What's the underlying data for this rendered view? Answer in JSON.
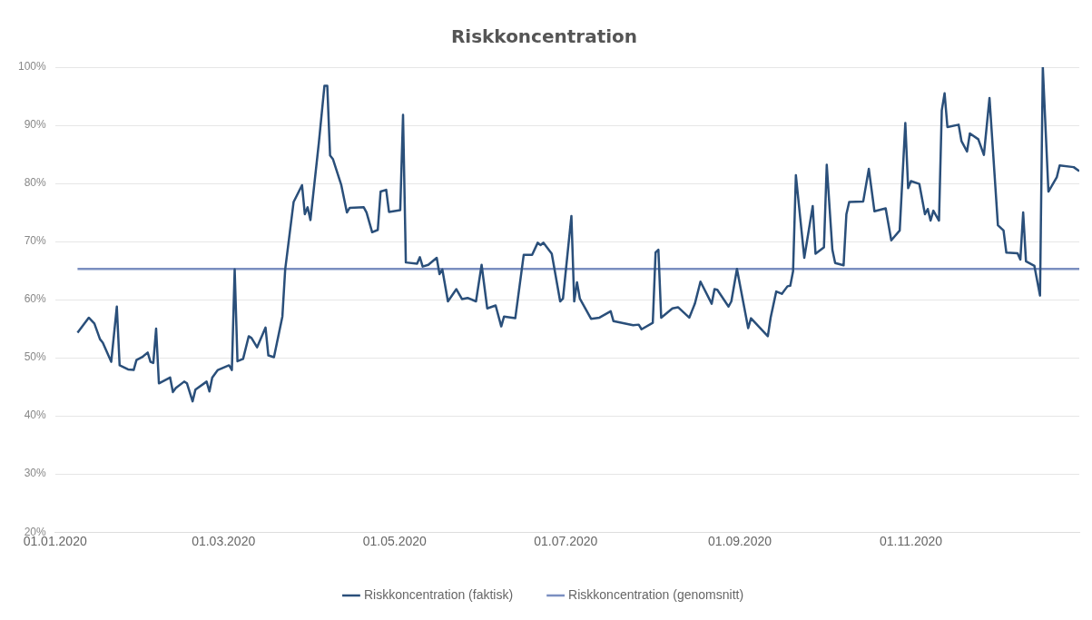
{
  "chart_data": {
    "type": "line",
    "title": "Riskkoncentration",
    "x": [
      "2020-01-09",
      "2020-01-13",
      "2020-01-15",
      "2020-01-17",
      "2020-01-18",
      "2020-01-21",
      "2020-01-23",
      "2020-01-24",
      "2020-01-27",
      "2020-01-29",
      "2020-01-30",
      "2020-02-01",
      "2020-02-03",
      "2020-02-04",
      "2020-02-05",
      "2020-02-06",
      "2020-02-07",
      "2020-02-11",
      "2020-02-12",
      "2020-02-13",
      "2020-02-16",
      "2020-02-17",
      "2020-02-19",
      "2020-02-20",
      "2020-02-24",
      "2020-02-25",
      "2020-02-26",
      "2020-02-28",
      "2020-03-03",
      "2020-03-04",
      "2020-03-05",
      "2020-03-06",
      "2020-03-08",
      "2020-03-10",
      "2020-03-11",
      "2020-03-13",
      "2020-03-16",
      "2020-03-17",
      "2020-03-19",
      "2020-03-22",
      "2020-03-23",
      "2020-03-26",
      "2020-03-29",
      "2020-03-30",
      "2020-03-31",
      "2020-04-01",
      "2020-04-04",
      "2020-04-06",
      "2020-04-07",
      "2020-04-08",
      "2020-04-09",
      "2020-04-12",
      "2020-04-14",
      "2020-04-15",
      "2020-04-20",
      "2020-04-21",
      "2020-04-23",
      "2020-04-25",
      "2020-04-26",
      "2020-04-28",
      "2020-04-29",
      "2020-05-03",
      "2020-05-04",
      "2020-05-05",
      "2020-05-09",
      "2020-05-10",
      "2020-05-11",
      "2020-05-13",
      "2020-05-16",
      "2020-05-17",
      "2020-05-18",
      "2020-05-20",
      "2020-05-23",
      "2020-05-25",
      "2020-05-27",
      "2020-05-30",
      "2020-06-01",
      "2020-06-03",
      "2020-06-06",
      "2020-06-08",
      "2020-06-09",
      "2020-06-13",
      "2020-06-16",
      "2020-06-19",
      "2020-06-21",
      "2020-06-22",
      "2020-06-23",
      "2020-06-26",
      "2020-06-29",
      "2020-06-30",
      "2020-07-03",
      "2020-07-04",
      "2020-07-05",
      "2020-07-06",
      "2020-07-10",
      "2020-07-13",
      "2020-07-17",
      "2020-07-18",
      "2020-07-25",
      "2020-07-27",
      "2020-07-28",
      "2020-08-01",
      "2020-08-02",
      "2020-08-03",
      "2020-08-04",
      "2020-08-08",
      "2020-08-10",
      "2020-08-14",
      "2020-08-16",
      "2020-08-18",
      "2020-08-22",
      "2020-08-23",
      "2020-08-24",
      "2020-08-28",
      "2020-08-29",
      "2020-08-31",
      "2020-09-04",
      "2020-09-05",
      "2020-09-11",
      "2020-09-12",
      "2020-09-14",
      "2020-09-16",
      "2020-09-18",
      "2020-09-19",
      "2020-09-20",
      "2020-09-21",
      "2020-09-24",
      "2020-09-27",
      "2020-09-28",
      "2020-10-01",
      "2020-10-02",
      "2020-10-04",
      "2020-10-05",
      "2020-10-08",
      "2020-10-09",
      "2020-10-10",
      "2020-10-15",
      "2020-10-17",
      "2020-10-19",
      "2020-10-23",
      "2020-10-25",
      "2020-10-28",
      "2020-10-30",
      "2020-10-31",
      "2020-11-01",
      "2020-11-04",
      "2020-11-06",
      "2020-11-07",
      "2020-11-08",
      "2020-11-09",
      "2020-11-11",
      "2020-11-12",
      "2020-11-13",
      "2020-11-14",
      "2020-11-18",
      "2020-11-19",
      "2020-11-21",
      "2020-11-22",
      "2020-11-25",
      "2020-11-27",
      "2020-11-29",
      "2020-12-02",
      "2020-12-04",
      "2020-12-05",
      "2020-12-09",
      "2020-12-10",
      "2020-12-11",
      "2020-12-12",
      "2020-12-15",
      "2020-12-17",
      "2020-12-18",
      "2020-12-20",
      "2020-12-23",
      "2020-12-24",
      "2020-12-29",
      "2020-12-31"
    ],
    "series": [
      {
        "name": "Riskkoncentration (faktisk)",
        "color": "#2a4f7a",
        "values": [
          54.3,
          56.9,
          55.9,
          53.2,
          52.6,
          49.3,
          58.8,
          48.7,
          48.0,
          47.9,
          49.6,
          50.1,
          50.9,
          49.3,
          49.1,
          55.0,
          45.6,
          46.6,
          44.1,
          44.8,
          45.9,
          45.6,
          42.5,
          44.5,
          45.9,
          44.2,
          46.6,
          47.9,
          48.7,
          47.9,
          65.2,
          49.4,
          49.8,
          53.7,
          53.4,
          51.8,
          55.2,
          50.4,
          50.1,
          57.1,
          65.2,
          76.8,
          79.7,
          74.7,
          75.9,
          73.7,
          87.0,
          96.8,
          96.8,
          84.8,
          84.2,
          79.7,
          75.0,
          75.8,
          75.9,
          75.0,
          71.6,
          72.0,
          78.6,
          78.9,
          75.1,
          75.4,
          91.8,
          66.4,
          66.2,
          67.3,
          65.7,
          66.0,
          67.2,
          64.4,
          65.2,
          59.7,
          61.8,
          60.1,
          60.3,
          59.7,
          66.0,
          58.5,
          59.0,
          55.4,
          57.1,
          56.8,
          67.7,
          67.7,
          69.8,
          69.4,
          69.8,
          67.9,
          59.7,
          60.2,
          74.4,
          59.7,
          63.0,
          60.2,
          56.7,
          56.9,
          58.0,
          56.3,
          55.6,
          55.7,
          54.9,
          56.0,
          68.1,
          68.6,
          56.9,
          58.5,
          58.7,
          56.9,
          59.3,
          63.1,
          59.3,
          61.8,
          61.7,
          58.8,
          59.7,
          65.3,
          55.1,
          56.8,
          53.7,
          56.9,
          61.4,
          61.0,
          62.3,
          62.4,
          64.9,
          81.4,
          67.2,
          76.1,
          67.9,
          69.0,
          83.2,
          68.6,
          66.3,
          65.9,
          74.7,
          76.8,
          76.9,
          82.5,
          75.2,
          75.7,
          70.2,
          71.9,
          90.4,
          79.2,
          80.4,
          79.9,
          74.7,
          75.6,
          73.6,
          75.3,
          73.6,
          92.6,
          95.5,
          89.7,
          90.1,
          87.3,
          85.5,
          88.6,
          87.6,
          84.9,
          94.7,
          72.8,
          71.9,
          68.1,
          68.0,
          66.9,
          75.0,
          66.6,
          65.8,
          60.7,
          100,
          78.6,
          81.1,
          83.1,
          82.8,
          82.1
        ]
      },
      {
        "name": "Riskkoncentration (genomsnitt)",
        "color": "#7b8fc0",
        "x": [
          "2020-01-09",
          "2020-12-31"
        ],
        "values": [
          65.3,
          65.3
        ]
      }
    ],
    "xlim": [
      "2020-01-01",
      "2020-12-31"
    ],
    "xticks": [
      {
        "value": "2020-01-01",
        "label": "01.01.2020"
      },
      {
        "value": "2020-03-01",
        "label": "01.03.2020"
      },
      {
        "value": "2020-05-01",
        "label": "01.05.2020"
      },
      {
        "value": "2020-07-01",
        "label": "01.07.2020"
      },
      {
        "value": "2020-09-01",
        "label": "01.09.2020"
      },
      {
        "value": "2020-11-01",
        "label": "01.11.2020"
      }
    ],
    "ylim": [
      20,
      100
    ],
    "yticks": [
      {
        "value": 20,
        "label": "20%"
      },
      {
        "value": 30,
        "label": "30%"
      },
      {
        "value": 40,
        "label": "40%"
      },
      {
        "value": 50,
        "label": "50%"
      },
      {
        "value": 60,
        "label": "60%"
      },
      {
        "value": 70,
        "label": "70%"
      },
      {
        "value": 80,
        "label": "80%"
      },
      {
        "value": 90,
        "label": "90%"
      },
      {
        "value": 100,
        "label": "100%"
      }
    ],
    "grid": "y",
    "legend": "bottom",
    "marker": "none",
    "line_style": "solid"
  }
}
